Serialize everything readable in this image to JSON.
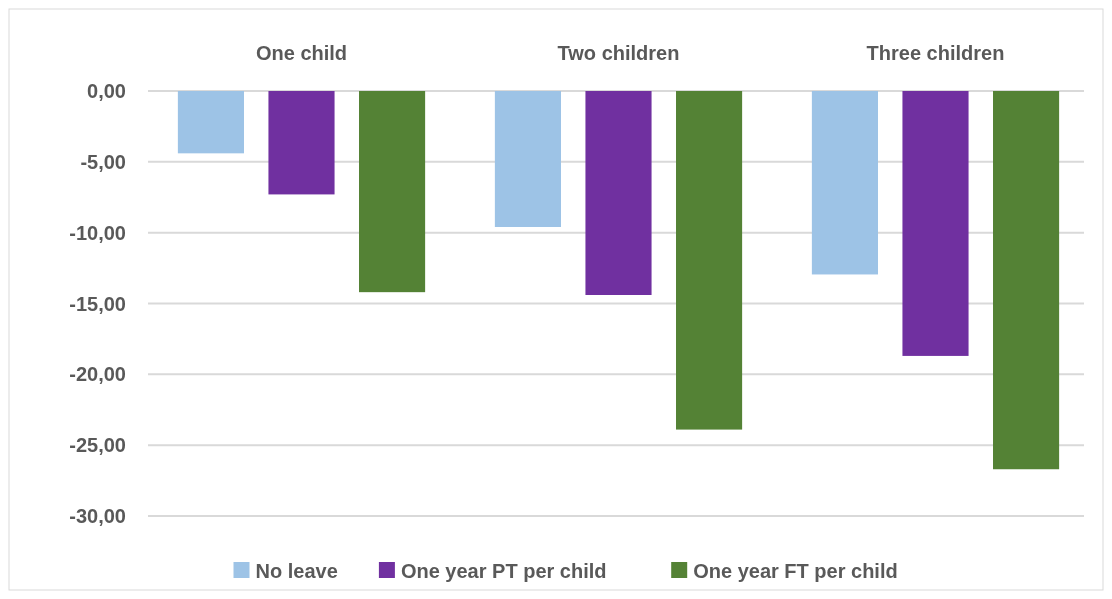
{
  "chart_data": {
    "type": "bar",
    "categories": [
      "One child",
      "Two children",
      "Three children"
    ],
    "series": [
      {
        "name": "No leave",
        "color": "#9dc3e6",
        "values": [
          -4.4,
          -9.6,
          -12.95
        ]
      },
      {
        "name": "One year PT per child",
        "color": "#7030a0",
        "values": [
          -7.3,
          -14.4,
          -18.7
        ]
      },
      {
        "name": "One year FT per child",
        "color": "#548235",
        "values": [
          -14.2,
          -23.9,
          -26.7
        ]
      }
    ],
    "ylim": [
      -30,
      0
    ],
    "yticks": [
      {
        "value": 0,
        "label": "0,00"
      },
      {
        "value": -5,
        "label": "-5,00"
      },
      {
        "value": -10,
        "label": "-10,00"
      },
      {
        "value": -15,
        "label": "-15,00"
      },
      {
        "value": -20,
        "label": "-20,00"
      },
      {
        "value": -25,
        "label": "-25,00"
      },
      {
        "value": -30,
        "label": "-30,00"
      }
    ],
    "grid": "y",
    "legend": "bottom"
  }
}
